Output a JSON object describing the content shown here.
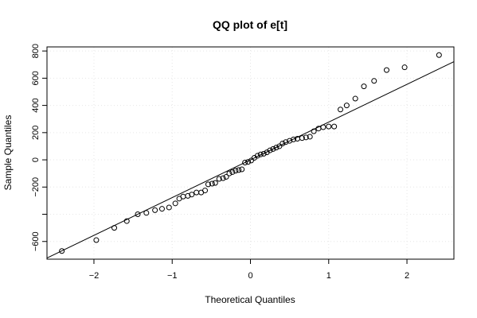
{
  "chart_data": {
    "type": "scatter",
    "title": "QQ plot of e[t]",
    "xlabel": "Theoretical Quantiles",
    "ylabel": "Sample Quantiles",
    "xlim": [
      -2.6,
      2.6
    ],
    "ylim": [
      -730,
      830
    ],
    "grid": true,
    "x_ticks": [
      -2,
      -1,
      0,
      1,
      2
    ],
    "x_tick_labels": [
      "−2",
      "−1",
      "0",
      "1",
      "2"
    ],
    "y_ticks": [
      -600,
      -400,
      -200,
      0,
      200,
      400,
      600,
      800
    ],
    "y_tick_labels": [
      "−600",
      "",
      "−200",
      "0",
      "200",
      "400",
      "600",
      "800"
    ],
    "points": [
      [
        -2.41,
        -670
      ],
      [
        -1.97,
        -590
      ],
      [
        -1.74,
        -500
      ],
      [
        -1.58,
        -450
      ],
      [
        -1.44,
        -400
      ],
      [
        -1.33,
        -390
      ],
      [
        -1.22,
        -370
      ],
      [
        -1.13,
        -360
      ],
      [
        -1.04,
        -350
      ],
      [
        -0.96,
        -320
      ],
      [
        -0.91,
        -285
      ],
      [
        -0.86,
        -270
      ],
      [
        -0.8,
        -265
      ],
      [
        -0.75,
        -255
      ],
      [
        -0.69,
        -240
      ],
      [
        -0.63,
        -240
      ],
      [
        -0.58,
        -225
      ],
      [
        -0.54,
        -180
      ],
      [
        -0.49,
        -175
      ],
      [
        -0.45,
        -170
      ],
      [
        -0.4,
        -140
      ],
      [
        -0.35,
        -135
      ],
      [
        -0.31,
        -125
      ],
      [
        -0.27,
        -100
      ],
      [
        -0.23,
        -90
      ],
      [
        -0.19,
        -80
      ],
      [
        -0.15,
        -75
      ],
      [
        -0.11,
        -70
      ],
      [
        -0.07,
        -20
      ],
      [
        -0.03,
        -15
      ],
      [
        0.01,
        -5
      ],
      [
        0.05,
        15
      ],
      [
        0.09,
        30
      ],
      [
        0.13,
        40
      ],
      [
        0.17,
        45
      ],
      [
        0.21,
        55
      ],
      [
        0.25,
        70
      ],
      [
        0.29,
        80
      ],
      [
        0.33,
        90
      ],
      [
        0.37,
        100
      ],
      [
        0.41,
        120
      ],
      [
        0.45,
        130
      ],
      [
        0.5,
        140
      ],
      [
        0.55,
        150
      ],
      [
        0.6,
        155
      ],
      [
        0.66,
        160
      ],
      [
        0.71,
        165
      ],
      [
        0.76,
        170
      ],
      [
        0.81,
        210
      ],
      [
        0.87,
        230
      ],
      [
        0.93,
        240
      ],
      [
        1.0,
        245
      ],
      [
        1.07,
        245
      ],
      [
        1.15,
        370
      ],
      [
        1.23,
        400
      ],
      [
        1.34,
        450
      ],
      [
        1.45,
        540
      ],
      [
        1.58,
        580
      ],
      [
        1.74,
        660
      ],
      [
        1.97,
        680
      ],
      [
        2.41,
        770
      ]
    ],
    "reference_line": {
      "intercept": 0,
      "slope": 277.5
    }
  }
}
